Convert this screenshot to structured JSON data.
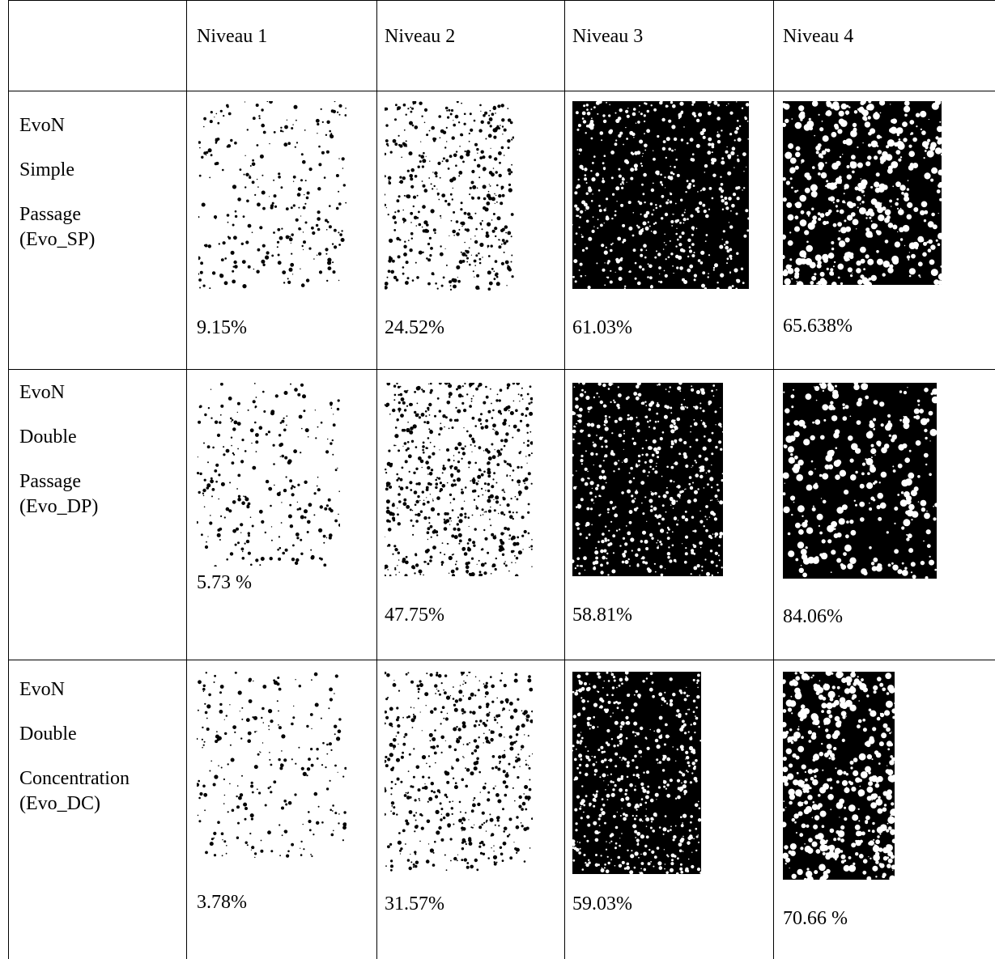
{
  "table": {
    "header": [
      "Niveau 1",
      "Niveau 2",
      "Niveau 3",
      "Niveau  4"
    ],
    "rows": [
      {
        "label": [
          "EvoN",
          "Simple",
          "Passage",
          "(Evo_SP)"
        ],
        "cells": [
          "9.15%",
          "24.52%",
          "61.03%",
          "65.638%"
        ]
      },
      {
        "label": [
          "EvoN",
          "Double",
          "Passage",
          "(Evo_DP)"
        ],
        "cells": [
          "5.73 %",
          "47.75%",
          "58.81%",
          "84.06%"
        ]
      },
      {
        "label": [
          "EvoN",
          "Double",
          "Concentration",
          "(Evo_DC)"
        ],
        "cells": [
          "3.78%",
          "31.57%",
          "59.03%",
          "70.66 %"
        ]
      }
    ]
  }
}
